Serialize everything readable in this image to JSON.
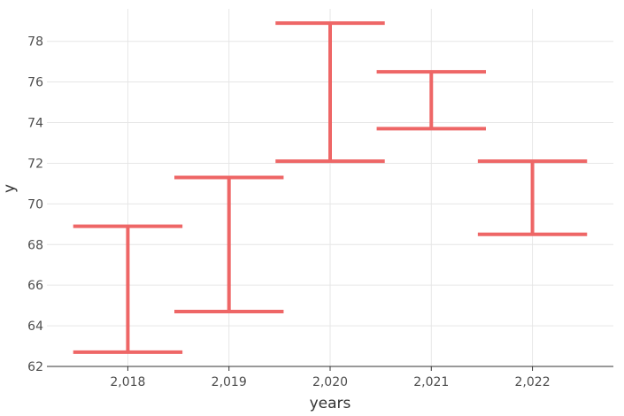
{
  "chart_data": {
    "type": "errorbar",
    "xlabel": "years",
    "ylabel": "y",
    "x_tick_labels": [
      "2,018",
      "2,019",
      "2,020",
      "2,021",
      "2,022"
    ],
    "y_tick_labels": [
      "62",
      "64",
      "66",
      "68",
      "70",
      "72",
      "74",
      "76",
      "78"
    ],
    "ylim": [
      62,
      79.6
    ],
    "xlim": [
      2017.2,
      2022.8
    ],
    "grid": true,
    "series": [
      {
        "color": "#ee6666",
        "points": [
          {
            "x": 2018,
            "ymin": 62.7,
            "ymax": 68.9
          },
          {
            "x": 2019,
            "ymin": 64.7,
            "ymax": 71.3
          },
          {
            "x": 2020,
            "ymin": 72.1,
            "ymax": 78.9
          },
          {
            "x": 2021,
            "ymin": 73.7,
            "ymax": 76.5
          },
          {
            "x": 2022,
            "ymin": 68.5,
            "ymax": 72.1
          }
        ]
      }
    ]
  }
}
